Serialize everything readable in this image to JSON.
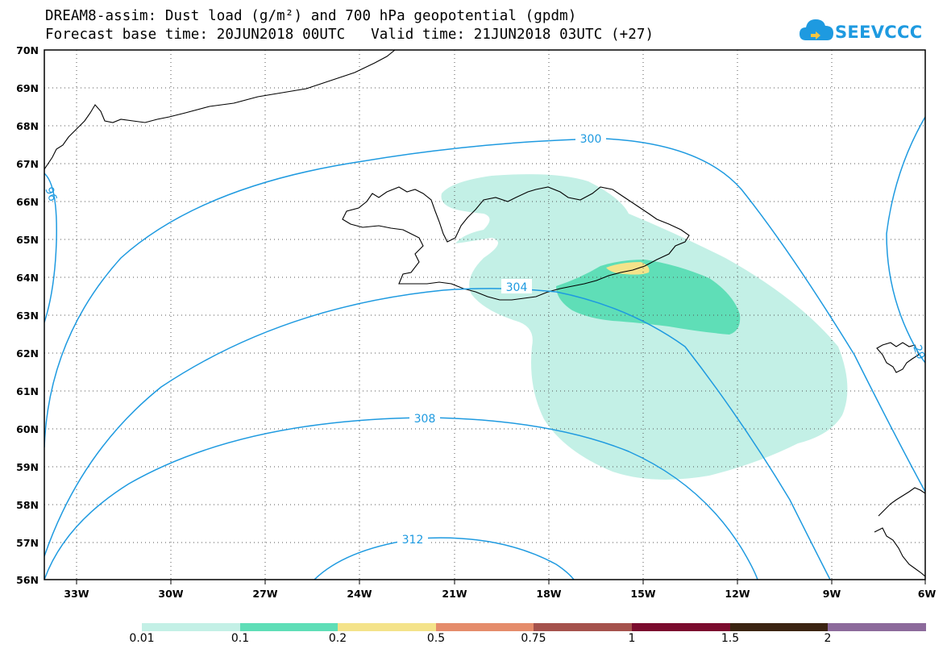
{
  "header": {
    "line1": "DREAM8-assim: Dust load (g/m²) and 700 hPa geopotential (gpdm)",
    "line2": "Forecast base time: 20JUN2018 00UTC   Valid time: 21JUN2018 03UTC (+27)"
  },
  "logo": {
    "text": "SEEVCCC",
    "icon": "cloud-icon",
    "color": "#1e9ae0"
  },
  "map": {
    "lat_labels": [
      "70N",
      "69N",
      "68N",
      "67N",
      "66N",
      "65N",
      "64N",
      "63N",
      "62N",
      "61N",
      "60N",
      "59N",
      "58N",
      "57N",
      "56N"
    ],
    "lon_labels": [
      "33W",
      "30W",
      "27W",
      "24W",
      "21W",
      "18W",
      "15W",
      "12W",
      "9W",
      "6W"
    ],
    "contour_labels": [
      "300",
      "304",
      "308",
      "312",
      "96",
      "29"
    ],
    "contour_color": "#1e9ae0"
  },
  "colorbar": {
    "labels": [
      "0.01",
      "0.1",
      "0.2",
      "0.5",
      "0.75",
      "1",
      "1.5",
      "2"
    ],
    "colors": [
      "#c3f0e6",
      "#5fdeb7",
      "#f4e38a",
      "#e58c6b",
      "#a5524c",
      "#7b0c2e",
      "#3b2412",
      "#8c6a9b"
    ]
  }
}
